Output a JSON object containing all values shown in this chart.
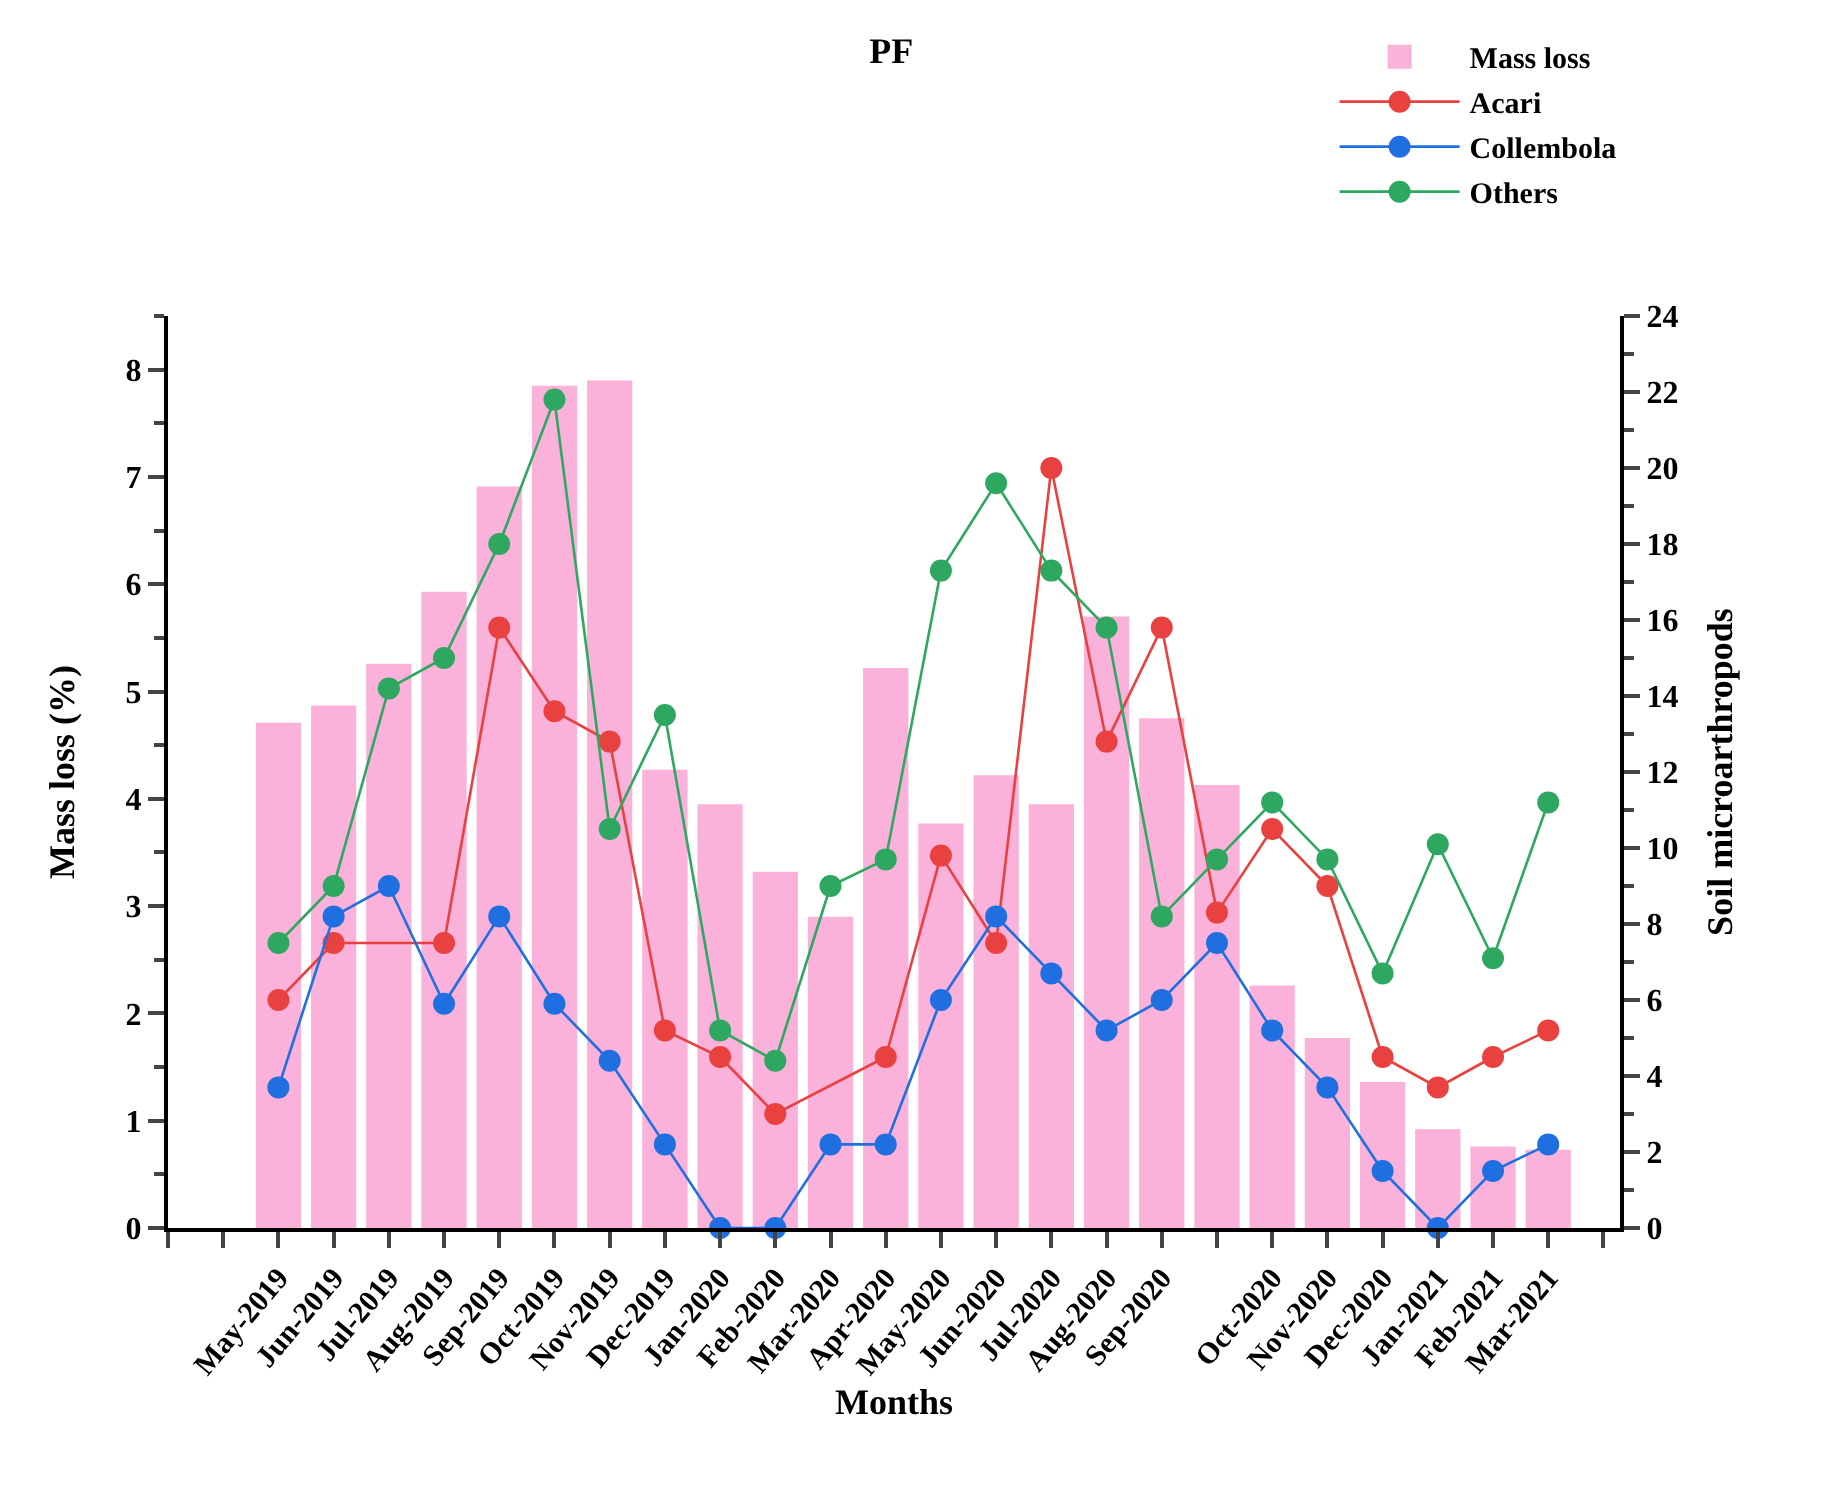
{
  "chart_data": {
    "type": "bar",
    "title": "PF",
    "xlabel": "Months",
    "ylabel": "Mass loss (%)",
    "y2label": "Soil microarthropods",
    "categories": [
      "May-2019",
      "Jun-2019",
      "Jul-2019",
      "Aug-2019",
      "Sep-2019",
      "Oct-2019",
      "Nov-2019",
      "Dec-2019",
      "Jan-2020",
      "Feb-2020",
      "Mar-2020",
      "Apr-2020",
      "May-2020",
      "Jun-2020",
      "Jul-2020",
      "Aug-2020",
      "Sep-2020",
      null,
      "Oct-2020",
      "Nov-2020",
      "Dec-2020",
      "Jan-2021",
      "Feb-2021",
      "Mar-2021"
    ],
    "series": [
      {
        "name": "Mass loss",
        "color": "#fab1da",
        "values": [
          4.71,
          4.87,
          5.26,
          5.93,
          6.91,
          7.85,
          7.9,
          4.27,
          3.95,
          3.32,
          2.9,
          5.22,
          3.77,
          4.22,
          3.95,
          5.7,
          4.75,
          4.13,
          2.26,
          1.77,
          1.36,
          0.92,
          0.76,
          0.73
        ]
      },
      {
        "name": "Acari",
        "type": "line",
        "axis": "y2",
        "color": "#e8413f",
        "values": [
          6.0,
          7.5,
          null,
          7.5,
          15.8,
          13.6,
          12.8,
          5.2,
          4.5,
          3.0,
          null,
          4.5,
          9.8,
          7.5,
          20.0,
          12.8,
          15.8,
          8.3,
          10.5,
          9.0,
          4.5,
          3.7,
          4.5,
          5.2
        ]
      },
      {
        "name": "Collembola",
        "type": "line",
        "axis": "y2",
        "color": "#1f6fe0",
        "values": [
          3.7,
          8.2,
          9.0,
          5.9,
          8.2,
          5.9,
          4.4,
          2.2,
          0,
          0,
          2.2,
          2.2,
          6.0,
          8.2,
          6.7,
          5.2,
          6.0,
          7.5,
          5.2,
          3.7,
          1.5,
          0,
          1.5,
          2.2
        ]
      },
      {
        "name": "Others",
        "type": "line",
        "axis": "y2",
        "color": "#2ea860",
        "values": [
          7.5,
          9.0,
          14.2,
          15.0,
          18.0,
          21.8,
          10.5,
          13.5,
          5.2,
          4.4,
          9.0,
          9.7,
          17.3,
          19.6,
          17.3,
          15.8,
          8.2,
          9.7,
          11.2,
          9.7,
          6.7,
          10.1,
          7.1,
          11.2
        ]
      }
    ],
    "ylim": [
      0,
      8.5
    ],
    "yticks": [
      0,
      1,
      2,
      3,
      4,
      5,
      6,
      7,
      8
    ],
    "y2lim": [
      0,
      24
    ],
    "y2ticks": [
      0,
      2,
      4,
      6,
      8,
      10,
      12,
      14,
      16,
      18,
      20,
      22,
      24
    ],
    "marker": "circle",
    "line_style": "solid",
    "grid": false,
    "legend": "top right"
  }
}
